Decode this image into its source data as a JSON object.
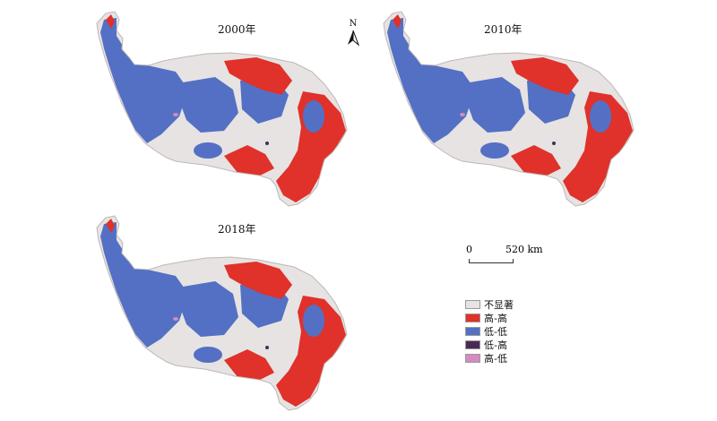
{
  "panels": [
    {
      "year_label": "2000年"
    },
    {
      "year_label": "2010年"
    },
    {
      "year_label": "2018年"
    }
  ],
  "north_arrow": {
    "label": "N"
  },
  "scale_bar": {
    "start": "0",
    "end": "520 km"
  },
  "legend": [
    {
      "label": "不显著",
      "color": "#e6e3e2"
    },
    {
      "label": "高-高",
      "color": "#e0312a"
    },
    {
      "label": "低-低",
      "color": "#5470c4"
    },
    {
      "label": "低-高",
      "color": "#4b2a55"
    },
    {
      "label": "高-低",
      "color": "#d58bc0"
    }
  ]
}
